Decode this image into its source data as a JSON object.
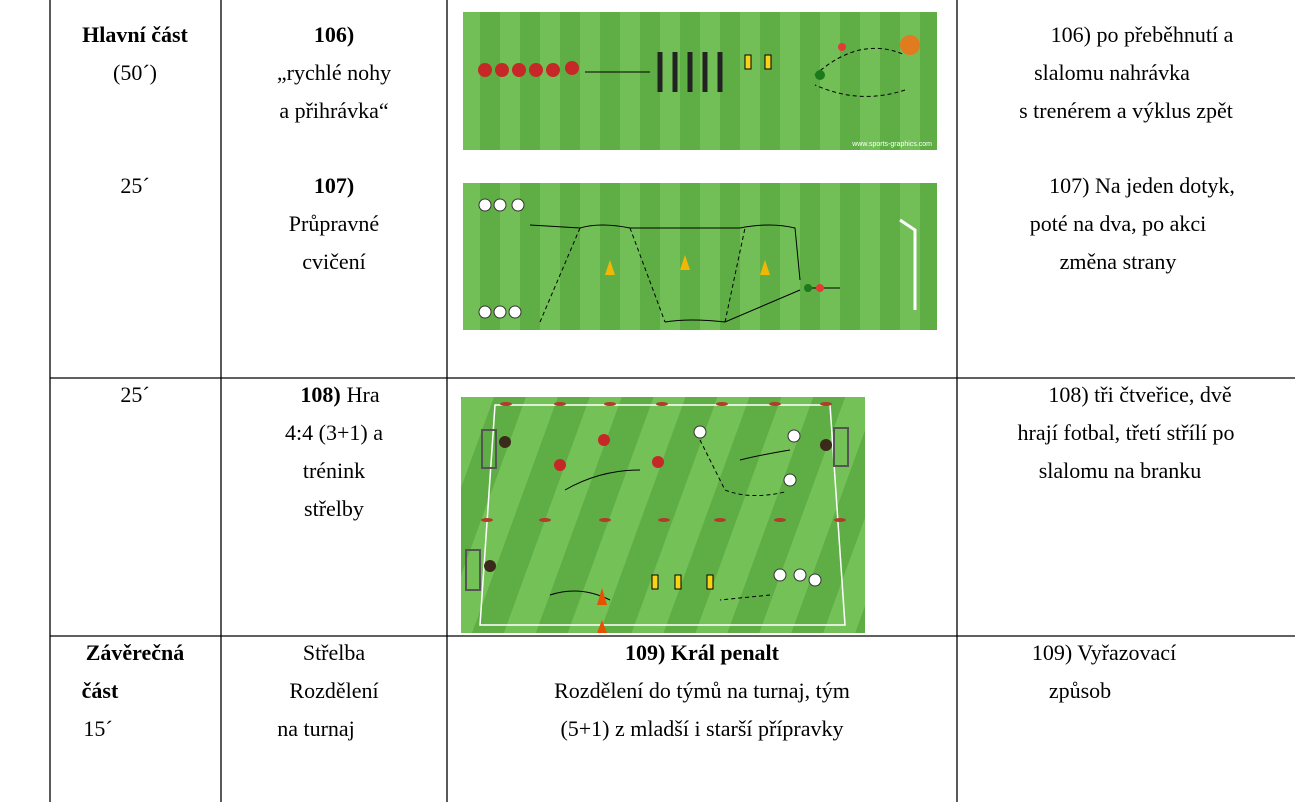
{
  "table": {
    "rows": [
      {
        "time": [
          "Hlavní část",
          "(50´)",
          "25´"
        ],
        "exercise": [
          "106)",
          "„rychlé nohy",
          "a přihrávka“",
          "107)",
          "Průpravné",
          "cvičení"
        ],
        "image_credit": "www.sports-graphics.com",
        "notes": [
          "106) po přeběhnutí a",
          "slalomu nahrávka",
          "s trenérem a výklus zpět",
          "107) Na jeden dotyk,",
          "poté na dva, po akci",
          "změna strany"
        ]
      },
      {
        "time": [
          "25´"
        ],
        "exercise": [
          {
            "number": "108)",
            "text": "Hra"
          },
          "4:4 (3+1) a",
          "trénink",
          "střelby"
        ],
        "notes": [
          "108) tři čtveřice, dvě",
          "hrají fotbal, třetí střílí po",
          "slalomu na branku"
        ]
      },
      {
        "time": [
          "Závěrečná",
          "část",
          "15´"
        ],
        "exercise": [
          "Střelba",
          "Rozdělení",
          "na turnaj"
        ],
        "description": [
          "109) Král penalt",
          "Rozdělení do týmů na turnaj, tým",
          "(5+1) z mladší i starší přípravky"
        ],
        "notes": [
          "109) Vyřazovací",
          "způsob"
        ]
      }
    ]
  }
}
